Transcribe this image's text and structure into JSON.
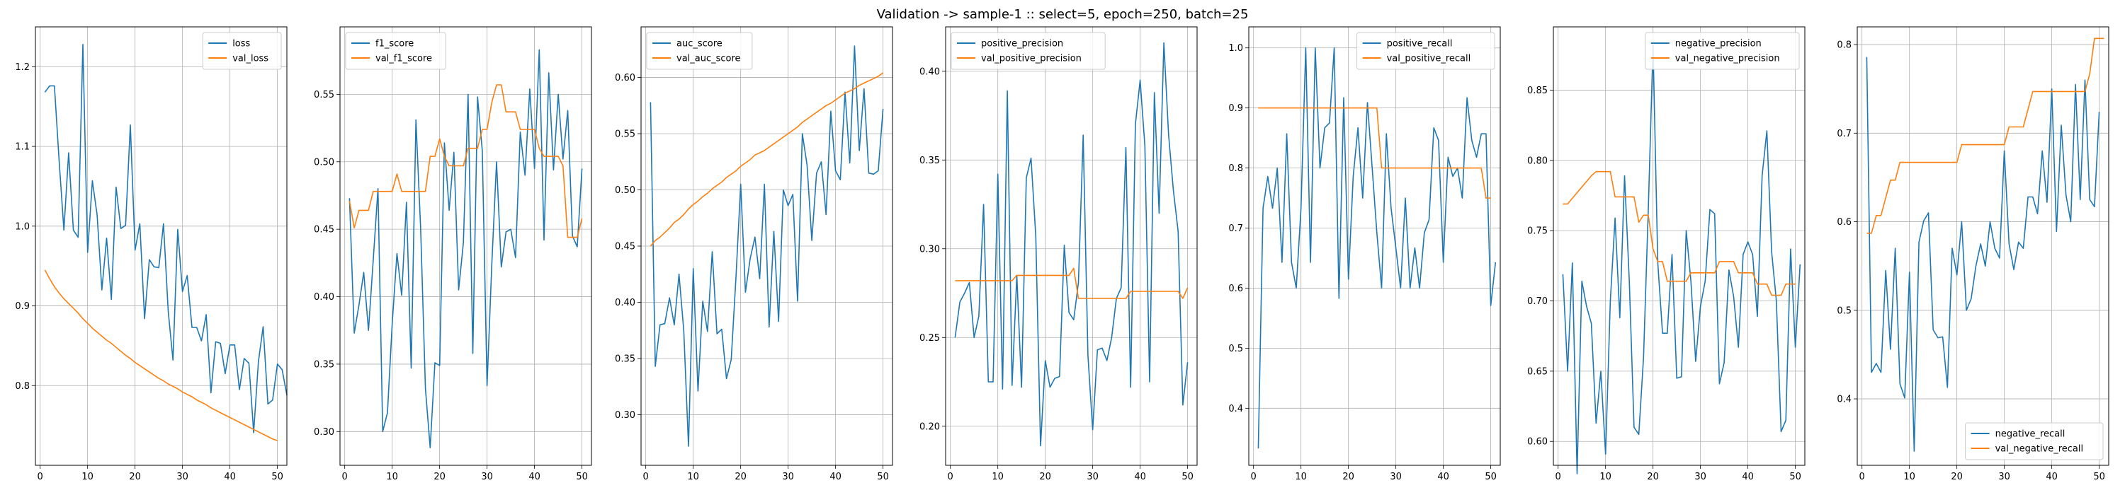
{
  "figure": {
    "suptitle": "Validation -> sample-1 :: select=5, epoch=250, batch=25",
    "colors": {
      "train": "#1f77b4",
      "val": "#ff7f0e",
      "grid": "#b0b0b0"
    }
  },
  "chart_data": [
    {
      "type": "line",
      "xlim": [
        -1,
        52
      ],
      "ylim": [
        0.7,
        1.25
      ],
      "xticks": [
        0,
        10,
        20,
        30,
        40,
        50
      ],
      "yticks": [
        0.8,
        0.9,
        1.0,
        1.1,
        1.2
      ],
      "tick_decimals": 1,
      "grid": true,
      "legend": "top-right",
      "series": [
        {
          "name": "loss",
          "role": "train",
          "x_start": 1,
          "values": [
            1.168,
            1.176,
            1.176,
            1.082,
            0.995,
            1.092,
            0.995,
            0.986,
            1.228,
            0.967,
            1.057,
            1.014,
            0.92,
            0.985,
            0.908,
            1.049,
            0.997,
            1.001,
            1.127,
            0.97,
            1.003,
            0.884,
            0.958,
            0.949,
            0.948,
            1.003,
            0.893,
            0.832,
            0.996,
            0.918,
            0.938,
            0.873,
            0.873,
            0.856,
            0.889,
            0.791,
            0.855,
            0.853,
            0.815,
            0.851,
            0.851,
            0.795,
            0.834,
            0.828,
            0.741,
            0.83,
            0.874,
            0.777,
            0.782,
            0.827,
            0.82,
            0.788
          ]
        },
        {
          "name": "val_loss",
          "role": "val",
          "x_start": 1,
          "values": [
            0.945,
            0.934,
            0.924,
            0.916,
            0.909,
            0.903,
            0.897,
            0.891,
            0.884,
            0.878,
            0.872,
            0.867,
            0.862,
            0.857,
            0.853,
            0.848,
            0.843,
            0.838,
            0.834,
            0.829,
            0.825,
            0.821,
            0.817,
            0.813,
            0.809,
            0.806,
            0.802,
            0.799,
            0.796,
            0.792,
            0.789,
            0.786,
            0.782,
            0.779,
            0.776,
            0.772,
            0.769,
            0.766,
            0.763,
            0.76,
            0.757,
            0.754,
            0.751,
            0.748,
            0.745,
            0.742,
            0.739,
            0.736,
            0.733,
            0.731
          ]
        }
      ]
    },
    {
      "type": "line",
      "xlim": [
        -1,
        52
      ],
      "ylim": [
        0.275,
        0.6
      ],
      "xticks": [
        0,
        10,
        20,
        30,
        40,
        50
      ],
      "yticks": [
        0.3,
        0.35,
        0.4,
        0.45,
        0.5,
        0.55
      ],
      "tick_decimals": 2,
      "grid": true,
      "legend": "top-left",
      "series": [
        {
          "name": "f1_score",
          "role": "train",
          "x_start": 1,
          "values": [
            0.473,
            0.373,
            0.394,
            0.418,
            0.375,
            0.427,
            0.48,
            0.3,
            0.314,
            0.38,
            0.432,
            0.401,
            0.47,
            0.347,
            0.531,
            0.45,
            0.332,
            0.288,
            0.351,
            0.349,
            0.514,
            0.464,
            0.507,
            0.405,
            0.44,
            0.55,
            0.358,
            0.548,
            0.508,
            0.334,
            0.424,
            0.5,
            0.422,
            0.448,
            0.45,
            0.429,
            0.522,
            0.49,
            0.554,
            0.495,
            0.583,
            0.442,
            0.566,
            0.494,
            0.55,
            0.502,
            0.538,
            0.445,
            0.437,
            0.495
          ]
        },
        {
          "name": "val_f1_score",
          "role": "val",
          "x_start": 1,
          "values": [
            0.471,
            0.451,
            0.464,
            0.464,
            0.464,
            0.478,
            0.478,
            0.478,
            0.478,
            0.478,
            0.491,
            0.478,
            0.478,
            0.478,
            0.478,
            0.478,
            0.478,
            0.504,
            0.504,
            0.517,
            0.504,
            0.497,
            0.497,
            0.497,
            0.497,
            0.51,
            0.51,
            0.51,
            0.524,
            0.524,
            0.544,
            0.557,
            0.557,
            0.537,
            0.537,
            0.537,
            0.524,
            0.524,
            0.524,
            0.524,
            0.51,
            0.504,
            0.504,
            0.504,
            0.504,
            0.497,
            0.444,
            0.444,
            0.444,
            0.458
          ]
        }
      ]
    },
    {
      "type": "line",
      "xlim": [
        -1,
        52
      ],
      "ylim": [
        0.255,
        0.645
      ],
      "xticks": [
        0,
        10,
        20,
        30,
        40,
        50
      ],
      "yticks": [
        0.3,
        0.35,
        0.4,
        0.45,
        0.5,
        0.55,
        0.6
      ],
      "tick_decimals": 2,
      "grid": true,
      "legend": "top-left",
      "series": [
        {
          "name": "auc_score",
          "role": "train",
          "x_start": 1,
          "values": [
            0.578,
            0.343,
            0.38,
            0.381,
            0.404,
            0.38,
            0.425,
            0.375,
            0.272,
            0.43,
            0.321,
            0.401,
            0.374,
            0.445,
            0.372,
            0.376,
            0.332,
            0.349,
            0.422,
            0.505,
            0.409,
            0.439,
            0.458,
            0.421,
            0.505,
            0.378,
            0.463,
            0.383,
            0.5,
            0.486,
            0.496,
            0.401,
            0.55,
            0.522,
            0.455,
            0.515,
            0.525,
            0.478,
            0.57,
            0.517,
            0.509,
            0.587,
            0.524,
            0.628,
            0.535,
            0.59,
            0.515,
            0.514,
            0.517,
            0.572
          ]
        },
        {
          "name": "val_auc_score",
          "role": "val",
          "x_start": 1,
          "values": [
            0.45,
            0.455,
            0.458,
            0.462,
            0.466,
            0.471,
            0.474,
            0.478,
            0.483,
            0.487,
            0.49,
            0.494,
            0.497,
            0.501,
            0.504,
            0.507,
            0.511,
            0.514,
            0.517,
            0.521,
            0.524,
            0.527,
            0.531,
            0.533,
            0.535,
            0.538,
            0.541,
            0.544,
            0.547,
            0.55,
            0.553,
            0.556,
            0.56,
            0.563,
            0.566,
            0.569,
            0.572,
            0.575,
            0.577,
            0.58,
            0.583,
            0.586,
            0.588,
            0.59,
            0.593,
            0.595,
            0.597,
            0.599,
            0.601,
            0.604
          ]
        }
      ]
    },
    {
      "type": "line",
      "xlim": [
        -1,
        52
      ],
      "ylim": [
        0.178,
        0.425
      ],
      "xticks": [
        0,
        10,
        20,
        30,
        40,
        50
      ],
      "yticks": [
        0.2,
        0.25,
        0.3,
        0.35,
        0.4
      ],
      "tick_decimals": 2,
      "grid": true,
      "legend": "top-left",
      "series": [
        {
          "name": "positive_precision",
          "role": "train",
          "x_start": 1,
          "values": [
            0.25,
            0.27,
            0.275,
            0.281,
            0.25,
            0.262,
            0.325,
            0.225,
            0.225,
            0.342,
            0.221,
            0.389,
            0.223,
            0.285,
            0.222,
            0.34,
            0.351,
            0.307,
            0.189,
            0.237,
            0.222,
            0.227,
            0.228,
            0.302,
            0.264,
            0.26,
            0.281,
            0.364,
            0.24,
            0.198,
            0.243,
            0.244,
            0.237,
            0.25,
            0.272,
            0.278,
            0.357,
            0.222,
            0.37,
            0.395,
            0.358,
            0.225,
            0.388,
            0.32,
            0.416,
            0.364,
            0.333,
            0.31,
            0.212,
            0.236
          ]
        },
        {
          "name": "val_positive_precision",
          "role": "val",
          "x_start": 1,
          "values": [
            0.282,
            0.282,
            0.282,
            0.282,
            0.282,
            0.282,
            0.282,
            0.282,
            0.282,
            0.282,
            0.282,
            0.282,
            0.282,
            0.285,
            0.285,
            0.285,
            0.285,
            0.285,
            0.285,
            0.285,
            0.285,
            0.285,
            0.285,
            0.285,
            0.285,
            0.289,
            0.272,
            0.272,
            0.272,
            0.272,
            0.272,
            0.272,
            0.272,
            0.272,
            0.272,
            0.272,
            0.272,
            0.276,
            0.276,
            0.276,
            0.276,
            0.276,
            0.276,
            0.276,
            0.276,
            0.276,
            0.276,
            0.276,
            0.272,
            0.278
          ]
        }
      ]
    },
    {
      "type": "line",
      "xlim": [
        -1,
        52
      ],
      "ylim": [
        0.305,
        1.035
      ],
      "xticks": [
        0,
        10,
        20,
        30,
        40,
        50
      ],
      "yticks": [
        0.4,
        0.5,
        0.6,
        0.7,
        0.8,
        0.9,
        1.0
      ],
      "tick_decimals": 1,
      "grid": true,
      "legend": "top-right",
      "series": [
        {
          "name": "positive_recall",
          "role": "train",
          "x_start": 1,
          "values": [
            0.333,
            0.733,
            0.786,
            0.733,
            0.8,
            0.643,
            0.857,
            0.643,
            0.6,
            0.733,
            1.0,
            0.643,
            1.0,
            0.8,
            0.867,
            0.875,
            1.0,
            0.583,
            0.917,
            0.615,
            0.786,
            0.867,
            0.75,
            0.909,
            0.8,
            0.692,
            0.6,
            0.857,
            0.733,
            0.667,
            0.6,
            0.75,
            0.6,
            0.667,
            0.6,
            0.692,
            0.714,
            0.867,
            0.846,
            0.643,
            0.818,
            0.786,
            0.8,
            0.75,
            0.917,
            0.846,
            0.818,
            0.857,
            0.857,
            0.571,
            0.643
          ]
        },
        {
          "name": "val_positive_recall",
          "role": "val",
          "x_start": 1,
          "values": [
            0.9,
            0.9,
            0.9,
            0.9,
            0.9,
            0.9,
            0.9,
            0.9,
            0.9,
            0.9,
            0.9,
            0.9,
            0.9,
            0.9,
            0.9,
            0.9,
            0.9,
            0.9,
            0.9,
            0.9,
            0.9,
            0.9,
            0.9,
            0.9,
            0.9,
            0.9,
            0.8,
            0.8,
            0.8,
            0.8,
            0.8,
            0.8,
            0.8,
            0.8,
            0.8,
            0.8,
            0.8,
            0.8,
            0.8,
            0.8,
            0.8,
            0.8,
            0.8,
            0.8,
            0.8,
            0.8,
            0.8,
            0.8,
            0.75,
            0.75
          ]
        }
      ]
    },
    {
      "type": "line",
      "xlim": [
        -1,
        52
      ],
      "ylim": [
        0.583,
        0.895
      ],
      "xticks": [
        0,
        10,
        20,
        30,
        40,
        50
      ],
      "yticks": [
        0.6,
        0.65,
        0.7,
        0.75,
        0.8,
        0.85
      ],
      "tick_decimals": 2,
      "grid": true,
      "legend": "top-right",
      "series": [
        {
          "name": "negative_precision",
          "role": "train",
          "x_start": 1,
          "values": [
            0.719,
            0.65,
            0.727,
            0.577,
            0.714,
            0.696,
            0.684,
            0.613,
            0.65,
            0.591,
            0.7,
            0.759,
            0.688,
            0.789,
            0.714,
            0.61,
            0.605,
            0.66,
            0.765,
            0.882,
            0.727,
            0.677,
            0.677,
            0.733,
            0.645,
            0.646,
            0.75,
            0.714,
            0.657,
            0.696,
            0.714,
            0.765,
            0.762,
            0.641,
            0.656,
            0.722,
            0.703,
            0.667,
            0.733,
            0.742,
            0.733,
            0.689,
            0.789,
            0.821,
            0.735,
            0.7,
            0.607,
            0.615,
            0.737,
            0.667,
            0.726
          ]
        },
        {
          "name": "val_negative_precision",
          "role": "val",
          "x_start": 1,
          "values": [
            0.769,
            0.769,
            0.773,
            0.777,
            0.781,
            0.785,
            0.789,
            0.792,
            0.792,
            0.792,
            0.792,
            0.774,
            0.774,
            0.774,
            0.774,
            0.774,
            0.756,
            0.761,
            0.761,
            0.737,
            0.728,
            0.728,
            0.714,
            0.714,
            0.714,
            0.714,
            0.714,
            0.72,
            0.72,
            0.72,
            0.72,
            0.72,
            0.72,
            0.728,
            0.728,
            0.728,
            0.728,
            0.72,
            0.72,
            0.72,
            0.72,
            0.712,
            0.712,
            0.712,
            0.704,
            0.704,
            0.704,
            0.712,
            0.712,
            0.712
          ]
        }
      ]
    },
    {
      "type": "line",
      "xlim": [
        -1,
        52
      ],
      "ylim": [
        0.325,
        0.82
      ],
      "xticks": [
        0,
        10,
        20,
        30,
        40,
        50
      ],
      "yticks": [
        0.4,
        0.5,
        0.6,
        0.7,
        0.8
      ],
      "tick_decimals": 1,
      "grid": true,
      "legend": "bottom-right",
      "series": [
        {
          "name": "negative_recall",
          "role": "train",
          "x_start": 1,
          "values": [
            0.786,
            0.43,
            0.44,
            0.43,
            0.545,
            0.456,
            0.57,
            0.417,
            0.401,
            0.543,
            0.341,
            0.577,
            0.601,
            0.61,
            0.478,
            0.469,
            0.47,
            0.413,
            0.57,
            0.54,
            0.6,
            0.5,
            0.513,
            0.55,
            0.575,
            0.55,
            0.6,
            0.57,
            0.559,
            0.68,
            0.575,
            0.546,
            0.577,
            0.57,
            0.628,
            0.628,
            0.609,
            0.68,
            0.622,
            0.75,
            0.589,
            0.709,
            0.63,
            0.6,
            0.755,
            0.625,
            0.76,
            0.625,
            0.617,
            0.724
          ]
        },
        {
          "name": "val_negative_recall",
          "role": "val",
          "x_start": 1,
          "values": [
            0.587,
            0.587,
            0.607,
            0.607,
            0.627,
            0.647,
            0.647,
            0.667,
            0.667,
            0.667,
            0.667,
            0.667,
            0.667,
            0.667,
            0.667,
            0.667,
            0.667,
            0.667,
            0.667,
            0.667,
            0.687,
            0.687,
            0.687,
            0.687,
            0.687,
            0.687,
            0.687,
            0.687,
            0.687,
            0.687,
            0.707,
            0.707,
            0.707,
            0.707,
            0.727,
            0.747,
            0.747,
            0.747,
            0.747,
            0.747,
            0.747,
            0.747,
            0.747,
            0.747,
            0.747,
            0.747,
            0.747,
            0.767,
            0.807,
            0.807,
            0.807
          ]
        }
      ]
    }
  ]
}
